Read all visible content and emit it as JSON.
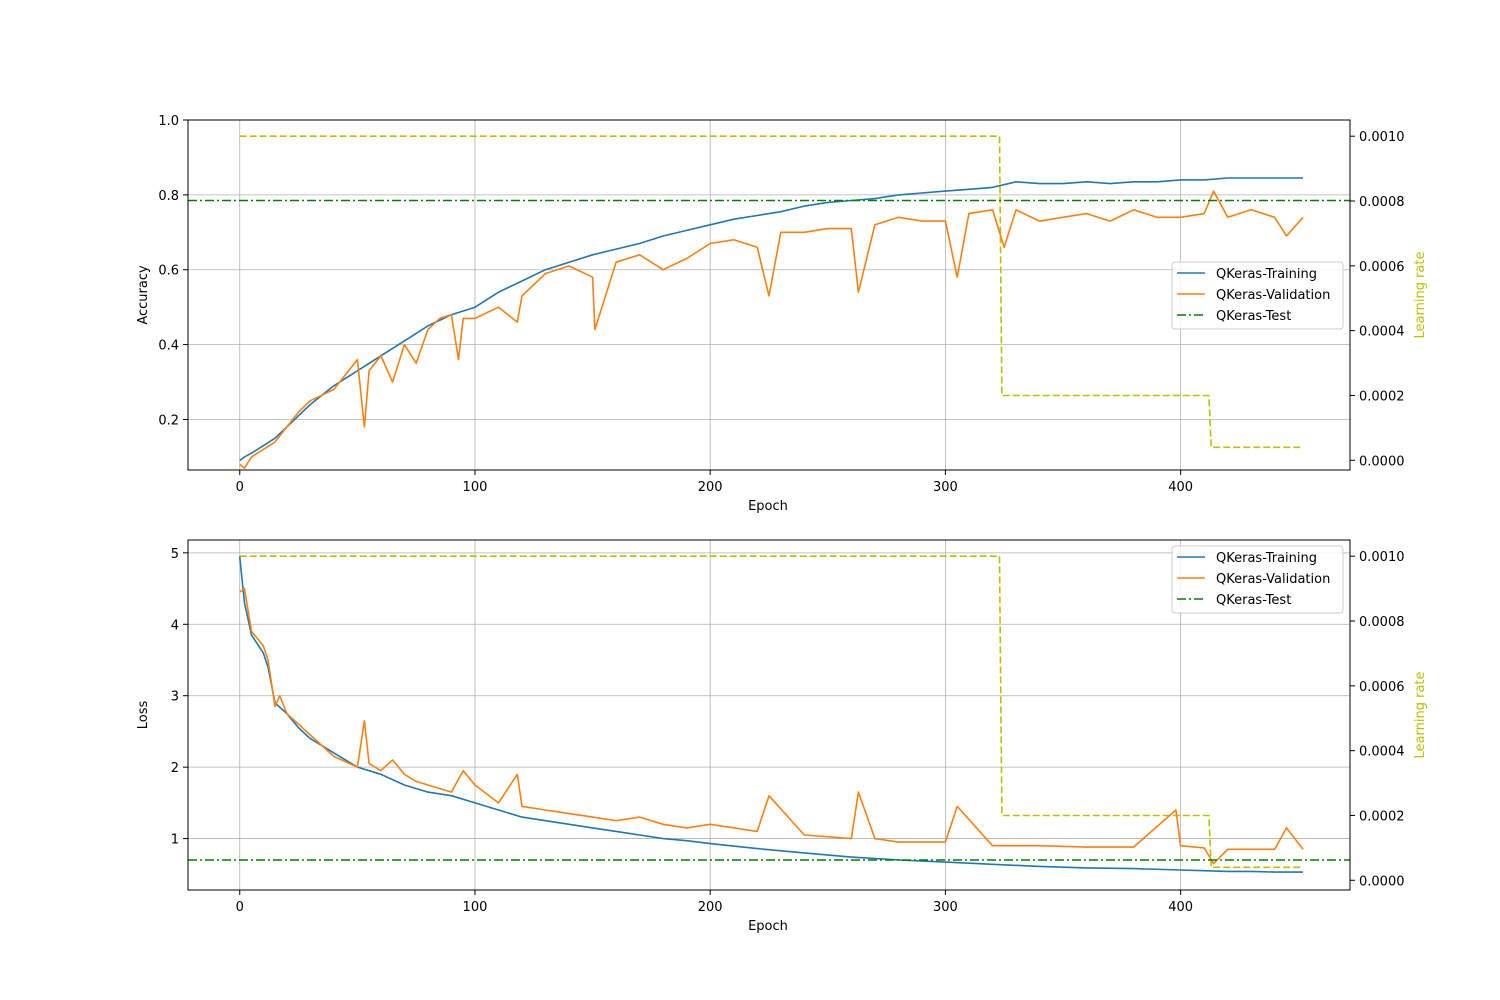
{
  "chart_data": [
    {
      "type": "line",
      "title": "",
      "xlabel": "Epoch",
      "ylabel": "Accuracy",
      "y2label": "Learning rate",
      "xlim": [
        -22,
        472
      ],
      "ylim": [
        0.065,
        1.0
      ],
      "y2lim": [
        -3e-05,
        0.00105
      ],
      "xticks": [
        "0",
        "100",
        "200",
        "300",
        "400"
      ],
      "yticks": [
        "0.2",
        "0.4",
        "0.6",
        "0.8",
        "1.0"
      ],
      "y2ticks": [
        "0.0000",
        "0.0002",
        "0.0004",
        "0.0006",
        "0.0008",
        "0.0010"
      ],
      "grid": true,
      "legend_position": "center-right",
      "series": [
        {
          "name": "QKeras-Training",
          "color": "#1f77b4",
          "style": "solid",
          "x": [
            0,
            2,
            5,
            10,
            15,
            20,
            25,
            30,
            40,
            50,
            60,
            70,
            80,
            90,
            100,
            110,
            120,
            130,
            140,
            150,
            160,
            170,
            180,
            190,
            200,
            210,
            220,
            230,
            240,
            250,
            260,
            270,
            280,
            290,
            300,
            310,
            320,
            330,
            340,
            350,
            360,
            370,
            380,
            390,
            400,
            410,
            420,
            430,
            440,
            452
          ],
          "y": [
            0.09,
            0.1,
            0.11,
            0.13,
            0.15,
            0.18,
            0.21,
            0.24,
            0.29,
            0.33,
            0.37,
            0.41,
            0.45,
            0.48,
            0.5,
            0.54,
            0.57,
            0.6,
            0.62,
            0.64,
            0.655,
            0.67,
            0.69,
            0.705,
            0.72,
            0.735,
            0.745,
            0.755,
            0.77,
            0.78,
            0.785,
            0.79,
            0.8,
            0.805,
            0.81,
            0.815,
            0.82,
            0.835,
            0.83,
            0.83,
            0.835,
            0.83,
            0.835,
            0.835,
            0.84,
            0.84,
            0.845,
            0.845,
            0.845,
            0.845
          ]
        },
        {
          "name": "QKeras-Validation",
          "color": "#ff7f0e",
          "style": "solid",
          "x": [
            0,
            2,
            5,
            10,
            15,
            20,
            25,
            30,
            40,
            50,
            53,
            55,
            60,
            65,
            70,
            75,
            80,
            85,
            90,
            93,
            95,
            100,
            110,
            118,
            120,
            130,
            140,
            150,
            151,
            160,
            170,
            180,
            190,
            200,
            210,
            220,
            225,
            230,
            240,
            250,
            260,
            263,
            270,
            280,
            290,
            300,
            305,
            310,
            320,
            325,
            330,
            340,
            350,
            360,
            370,
            380,
            390,
            400,
            410,
            414,
            420,
            430,
            440,
            445,
            452
          ],
          "y": [
            0.08,
            0.07,
            0.1,
            0.12,
            0.14,
            0.18,
            0.22,
            0.25,
            0.28,
            0.36,
            0.18,
            0.33,
            0.37,
            0.3,
            0.4,
            0.35,
            0.44,
            0.47,
            0.48,
            0.36,
            0.47,
            0.47,
            0.5,
            0.46,
            0.53,
            0.59,
            0.61,
            0.58,
            0.44,
            0.62,
            0.64,
            0.6,
            0.63,
            0.67,
            0.68,
            0.66,
            0.53,
            0.7,
            0.7,
            0.71,
            0.71,
            0.54,
            0.72,
            0.74,
            0.73,
            0.73,
            0.58,
            0.75,
            0.76,
            0.66,
            0.76,
            0.73,
            0.74,
            0.75,
            0.73,
            0.76,
            0.74,
            0.74,
            0.75,
            0.81,
            0.74,
            0.76,
            0.74,
            0.69,
            0.74
          ]
        },
        {
          "name": "QKeras-Test",
          "color": "#008000",
          "style": "dashdot",
          "x": [
            -22,
            472
          ],
          "y": [
            0.785,
            0.785
          ]
        },
        {
          "name": "",
          "axis": "y2",
          "color": "#bfbf00",
          "style": "dashed",
          "x": [
            0,
            323,
            324,
            412,
            413,
            452
          ],
          "y": [
            0.001,
            0.001,
            0.0002,
            0.0002,
            4e-05,
            4e-05
          ]
        }
      ]
    },
    {
      "type": "line",
      "title": "",
      "xlabel": "Epoch",
      "ylabel": "Loss",
      "y2label": "Learning rate",
      "xlim": [
        -22,
        472
      ],
      "ylim": [
        0.28,
        5.18
      ],
      "y2lim": [
        -3e-05,
        0.00105
      ],
      "xticks": [
        "0",
        "100",
        "200",
        "300",
        "400"
      ],
      "yticks": [
        "1",
        "2",
        "3",
        "4",
        "5"
      ],
      "y2ticks": [
        "0.0000",
        "0.0002",
        "0.0004",
        "0.0006",
        "0.0008",
        "0.0010"
      ],
      "grid": true,
      "legend_position": "top-right",
      "series": [
        {
          "name": "QKeras-Training",
          "color": "#1f77b4",
          "style": "solid",
          "x": [
            0,
            2,
            5,
            10,
            12,
            15,
            20,
            25,
            30,
            40,
            50,
            60,
            70,
            80,
            90,
            100,
            110,
            120,
            130,
            140,
            150,
            160,
            170,
            180,
            190,
            200,
            220,
            240,
            260,
            280,
            300,
            320,
            340,
            360,
            380,
            400,
            410,
            420,
            430,
            440,
            452
          ],
          "y": [
            4.95,
            4.3,
            3.85,
            3.6,
            3.4,
            2.9,
            2.75,
            2.55,
            2.4,
            2.2,
            2.0,
            1.9,
            1.75,
            1.65,
            1.6,
            1.5,
            1.4,
            1.3,
            1.25,
            1.2,
            1.15,
            1.1,
            1.05,
            1.0,
            0.97,
            0.93,
            0.86,
            0.8,
            0.74,
            0.7,
            0.67,
            0.64,
            0.61,
            0.59,
            0.58,
            0.56,
            0.55,
            0.54,
            0.54,
            0.53,
            0.53
          ]
        },
        {
          "name": "QKeras-Validation",
          "color": "#ff7f0e",
          "style": "solid",
          "x": [
            0,
            2,
            5,
            10,
            12,
            15,
            17,
            20,
            25,
            30,
            40,
            50,
            53,
            55,
            60,
            65,
            70,
            75,
            80,
            90,
            95,
            100,
            110,
            118,
            120,
            130,
            140,
            150,
            160,
            170,
            180,
            190,
            200,
            220,
            225,
            240,
            260,
            263,
            270,
            280,
            300,
            305,
            320,
            340,
            360,
            380,
            398,
            400,
            410,
            414,
            420,
            430,
            440,
            445,
            452
          ],
          "y": [
            4.45,
            4.5,
            3.9,
            3.7,
            3.5,
            2.85,
            3.0,
            2.75,
            2.6,
            2.45,
            2.15,
            2.0,
            2.65,
            2.05,
            1.95,
            2.1,
            1.9,
            1.8,
            1.75,
            1.65,
            1.95,
            1.75,
            1.5,
            1.9,
            1.45,
            1.4,
            1.35,
            1.3,
            1.25,
            1.3,
            1.2,
            1.15,
            1.2,
            1.1,
            1.6,
            1.05,
            1.0,
            1.65,
            1.0,
            0.95,
            0.95,
            1.45,
            0.9,
            0.9,
            0.88,
            0.88,
            1.4,
            0.9,
            0.87,
            0.65,
            0.85,
            0.85,
            0.85,
            1.15,
            0.85
          ]
        },
        {
          "name": "QKeras-Test",
          "color": "#008000",
          "style": "dashdot",
          "x": [
            -22,
            472
          ],
          "y": [
            0.7,
            0.7
          ]
        },
        {
          "name": "",
          "axis": "y2",
          "color": "#bfbf00",
          "style": "dashed",
          "x": [
            0,
            323,
            324,
            412,
            413,
            452
          ],
          "y": [
            0.001,
            0.001,
            0.0002,
            0.0002,
            4e-05,
            4e-05
          ]
        }
      ]
    }
  ]
}
